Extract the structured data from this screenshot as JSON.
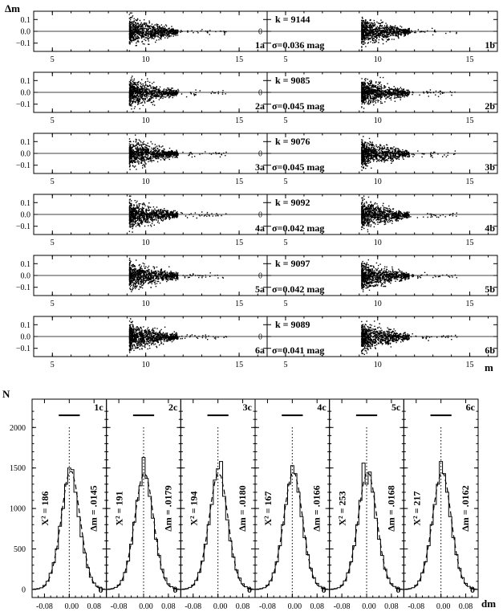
{
  "figure": {
    "top_ylabel": "Δm",
    "top_xlabel": "m",
    "bottom_ylabel": "N",
    "bottom_xlabel": "dm"
  },
  "chart_data": [
    {
      "type": "scatter",
      "group": "top-left (a) panels: Δm vs m",
      "x_ticks": [
        5,
        10,
        15
      ],
      "y_ticks": [
        0.1,
        0.0,
        -0.1
      ],
      "xlim": [
        4,
        16.5
      ],
      "ylim": [
        -0.17,
        0.17
      ],
      "panels": [
        {
          "label": "1a"
        },
        {
          "label": "2a"
        },
        {
          "label": "3a"
        },
        {
          "label": "4a"
        },
        {
          "label": "5a"
        },
        {
          "label": "6a"
        }
      ]
    },
    {
      "type": "scatter",
      "group": "top-right (b) panels: Δm vs m",
      "x_ticks": [
        5,
        10,
        15
      ],
      "y_tick_center": "0",
      "xlim": [
        4,
        16.5
      ],
      "ylim": [
        -0.17,
        0.17
      ],
      "panels": [
        {
          "label": "1b",
          "k": "k = 9144",
          "sigma": "σ=0.036 mag"
        },
        {
          "label": "2b",
          "k": "k = 9085",
          "sigma": "σ=0.045 mag"
        },
        {
          "label": "3b",
          "k": "k = 9076",
          "sigma": "σ=0.045 mag"
        },
        {
          "label": "4b",
          "k": "k = 9092",
          "sigma": "σ=0.042 mag"
        },
        {
          "label": "5b",
          "k": "k = 9097",
          "sigma": "σ=0.042 mag"
        },
        {
          "label": "6b",
          "k": "k = 9089",
          "sigma": "σ=0.041 mag"
        }
      ]
    },
    {
      "type": "bar",
      "group": "bottom histograms (c): N vs dm",
      "x_ticks": [
        "-0.08",
        "0.00",
        "0.08"
      ],
      "y_ticks": [
        0,
        500,
        1000,
        1500,
        2000
      ],
      "xlim": [
        -0.12,
        0.12
      ],
      "ylim": [
        -100,
        2350
      ],
      "bin_width": 0.01,
      "bin_centers": [
        -0.11,
        -0.1,
        -0.09,
        -0.08,
        -0.07,
        -0.06,
        -0.05,
        -0.04,
        -0.03,
        -0.02,
        -0.01,
        0.0,
        0.01,
        0.02,
        0.03,
        0.04,
        0.05,
        0.06,
        0.07,
        0.08,
        0.09,
        0.1,
        0.11
      ],
      "panels": [
        {
          "label": "1c",
          "chi2": "X² = 186",
          "dm": "Δm = .0145",
          "zero": "0",
          "counts": [
            5,
            10,
            20,
            50,
            100,
            200,
            330,
            500,
            780,
            1000,
            1300,
            1500,
            1480,
            1200,
            900,
            650,
            450,
            270,
            150,
            80,
            40,
            20,
            5
          ],
          "fit": [
            2,
            6,
            15,
            40,
            90,
            180,
            320,
            520,
            780,
            1060,
            1320,
            1460,
            1450,
            1290,
            1030,
            750,
            490,
            290,
            150,
            72,
            30,
            10,
            3
          ]
        },
        {
          "label": "2c",
          "chi2": "X² = 191",
          "dm": "Δm = .0179",
          "zero": "0",
          "counts": [
            5,
            10,
            25,
            55,
            110,
            210,
            350,
            560,
            830,
            1100,
            1280,
            1630,
            1370,
            1150,
            880,
            620,
            420,
            250,
            140,
            70,
            35,
            15,
            5
          ],
          "fit": [
            3,
            8,
            20,
            50,
            110,
            210,
            370,
            580,
            840,
            1110,
            1330,
            1440,
            1400,
            1220,
            950,
            660,
            410,
            230,
            115,
            52,
            21,
            7,
            2
          ]
        },
        {
          "label": "3c",
          "chi2": "X² = 194",
          "dm": "Δm = .0180",
          "zero": "0",
          "counts": [
            5,
            10,
            25,
            55,
            110,
            210,
            350,
            560,
            800,
            1050,
            1350,
            1490,
            1580,
            1150,
            860,
            600,
            400,
            240,
            140,
            70,
            35,
            15,
            5
          ],
          "fit": [
            3,
            8,
            20,
            50,
            110,
            210,
            370,
            580,
            840,
            1110,
            1330,
            1440,
            1400,
            1220,
            950,
            660,
            410,
            230,
            115,
            52,
            21,
            7,
            2
          ]
        },
        {
          "label": "4c",
          "chi2": "X² = 167",
          "dm": "Δm = .0166",
          "zero": "0",
          "counts": [
            5,
            10,
            22,
            52,
            105,
            205,
            340,
            540,
            800,
            1050,
            1300,
            1530,
            1430,
            1200,
            900,
            640,
            430,
            260,
            145,
            75,
            38,
            18,
            5
          ],
          "fit": [
            2,
            7,
            18,
            45,
            100,
            195,
            345,
            550,
            810,
            1090,
            1320,
            1450,
            1420,
            1250,
            980,
            690,
            440,
            250,
            125,
            58,
            24,
            8,
            2
          ]
        },
        {
          "label": "5c",
          "chi2": "X² = 253",
          "dm": "Δm = .0168",
          "zero": "0",
          "counts": [
            5,
            10,
            22,
            52,
            105,
            205,
            340,
            540,
            800,
            1100,
            1560,
            1300,
            1450,
            1200,
            880,
            620,
            420,
            250,
            140,
            72,
            36,
            16,
            5
          ],
          "fit": [
            2,
            7,
            18,
            45,
            100,
            195,
            345,
            550,
            810,
            1090,
            1320,
            1450,
            1420,
            1250,
            980,
            690,
            440,
            250,
            125,
            58,
            24,
            8,
            2
          ]
        },
        {
          "label": "6c",
          "chi2": "X² = 217",
          "dm": "Δm = .0162",
          "zero": "0",
          "counts": [
            5,
            10,
            22,
            52,
            105,
            205,
            340,
            540,
            800,
            1050,
            1300,
            1580,
            1430,
            1200,
            900,
            640,
            430,
            260,
            145,
            75,
            38,
            18,
            5
          ],
          "fit": [
            2,
            7,
            18,
            45,
            100,
            195,
            345,
            550,
            810,
            1090,
            1320,
            1450,
            1420,
            1250,
            980,
            690,
            440,
            250,
            125,
            58,
            24,
            8,
            2
          ]
        }
      ]
    }
  ]
}
